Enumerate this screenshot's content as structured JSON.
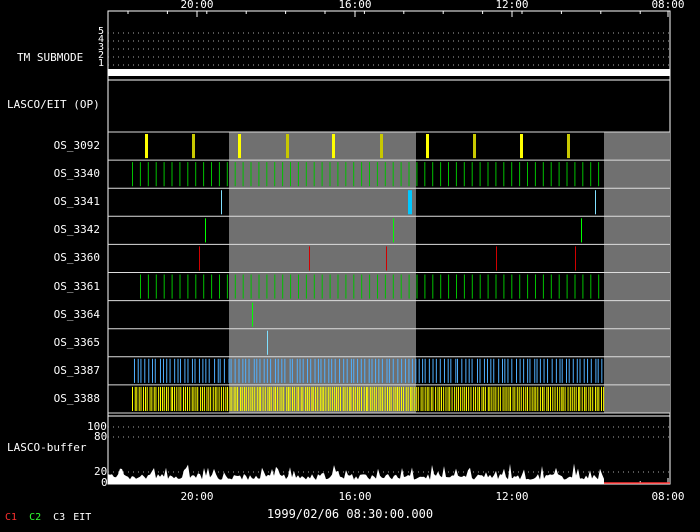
{
  "chart_data": {
    "type": "timeline",
    "x_ticks_top": [
      "20:00",
      "16:00",
      "12:00",
      "08:00"
    ],
    "x_ticks_bottom": [
      "20:00",
      "16:00",
      "12:00",
      "08:00"
    ],
    "date_label": "1999/02/06 08:30:00.000",
    "tm_submode": {
      "label": "TM SUBMODE",
      "levels": [
        "5",
        "4",
        "3",
        "2",
        "1"
      ],
      "value": 1
    },
    "section_label": "LASCO/EIT (OP)",
    "rows": [
      {
        "name": "OS_3092",
        "color": "#ffff00",
        "pattern": "sparse-thick"
      },
      {
        "name": "OS_3340",
        "color": "#00c000",
        "pattern": "periodic"
      },
      {
        "name": "OS_3341",
        "color": "#80e0ff",
        "pattern": "few"
      },
      {
        "name": "OS_3342",
        "color": "#00ff00",
        "pattern": "few"
      },
      {
        "name": "OS_3360",
        "color": "#d00000",
        "pattern": "few"
      },
      {
        "name": "OS_3361",
        "color": "#00c000",
        "pattern": "periodic"
      },
      {
        "name": "OS_3364",
        "color": "#00ff00",
        "pattern": "single"
      },
      {
        "name": "OS_3365",
        "color": "#80e0ff",
        "pattern": "single"
      },
      {
        "name": "OS_3387",
        "color": "#50b0ff",
        "pattern": "dense"
      },
      {
        "name": "OS_3388",
        "color": "#ffff00",
        "pattern": "very-dense"
      }
    ],
    "buffer": {
      "label": "LASCO-buffer",
      "y_ticks": [
        "100",
        "80",
        "20",
        "0"
      ]
    },
    "legend": [
      {
        "label": "C1",
        "color": "#ff3030"
      },
      {
        "label": "C2",
        "color": "#30ff30"
      },
      {
        "label": "C3",
        "color": "#ffffff"
      },
      {
        "label": "EIT",
        "color": "#ffffff"
      }
    ]
  }
}
